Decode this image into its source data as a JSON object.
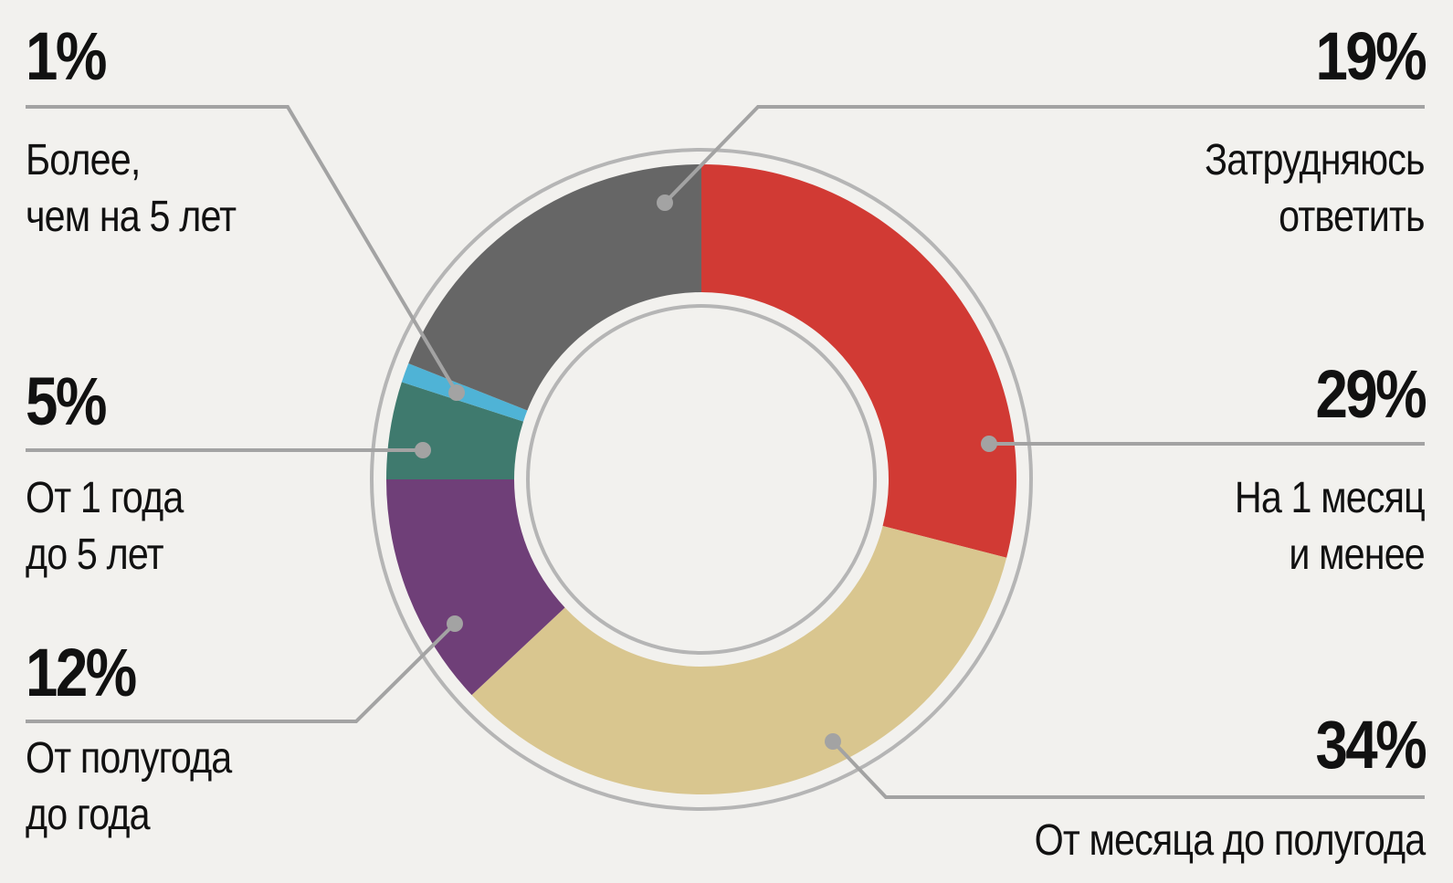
{
  "chart_data": {
    "type": "donut",
    "categories": [
      "На 1 месяц\nи менее",
      "От месяца до полугода",
      "От полугода\nдо года",
      "От 1 года\nдо 5 лет",
      "Более,\nчем на 5 лет",
      "Затрудняюсь\nответить"
    ],
    "values": [
      29,
      34,
      12,
      5,
      1,
      19
    ],
    "value_labels": [
      "29%",
      "34%",
      "12%",
      "5%",
      "1%",
      "19%"
    ],
    "colors": [
      "#d13a34",
      "#d9c68f",
      "#6f3f78",
      "#3f7a6e",
      "#4fb3d6",
      "#666666"
    ]
  }
}
